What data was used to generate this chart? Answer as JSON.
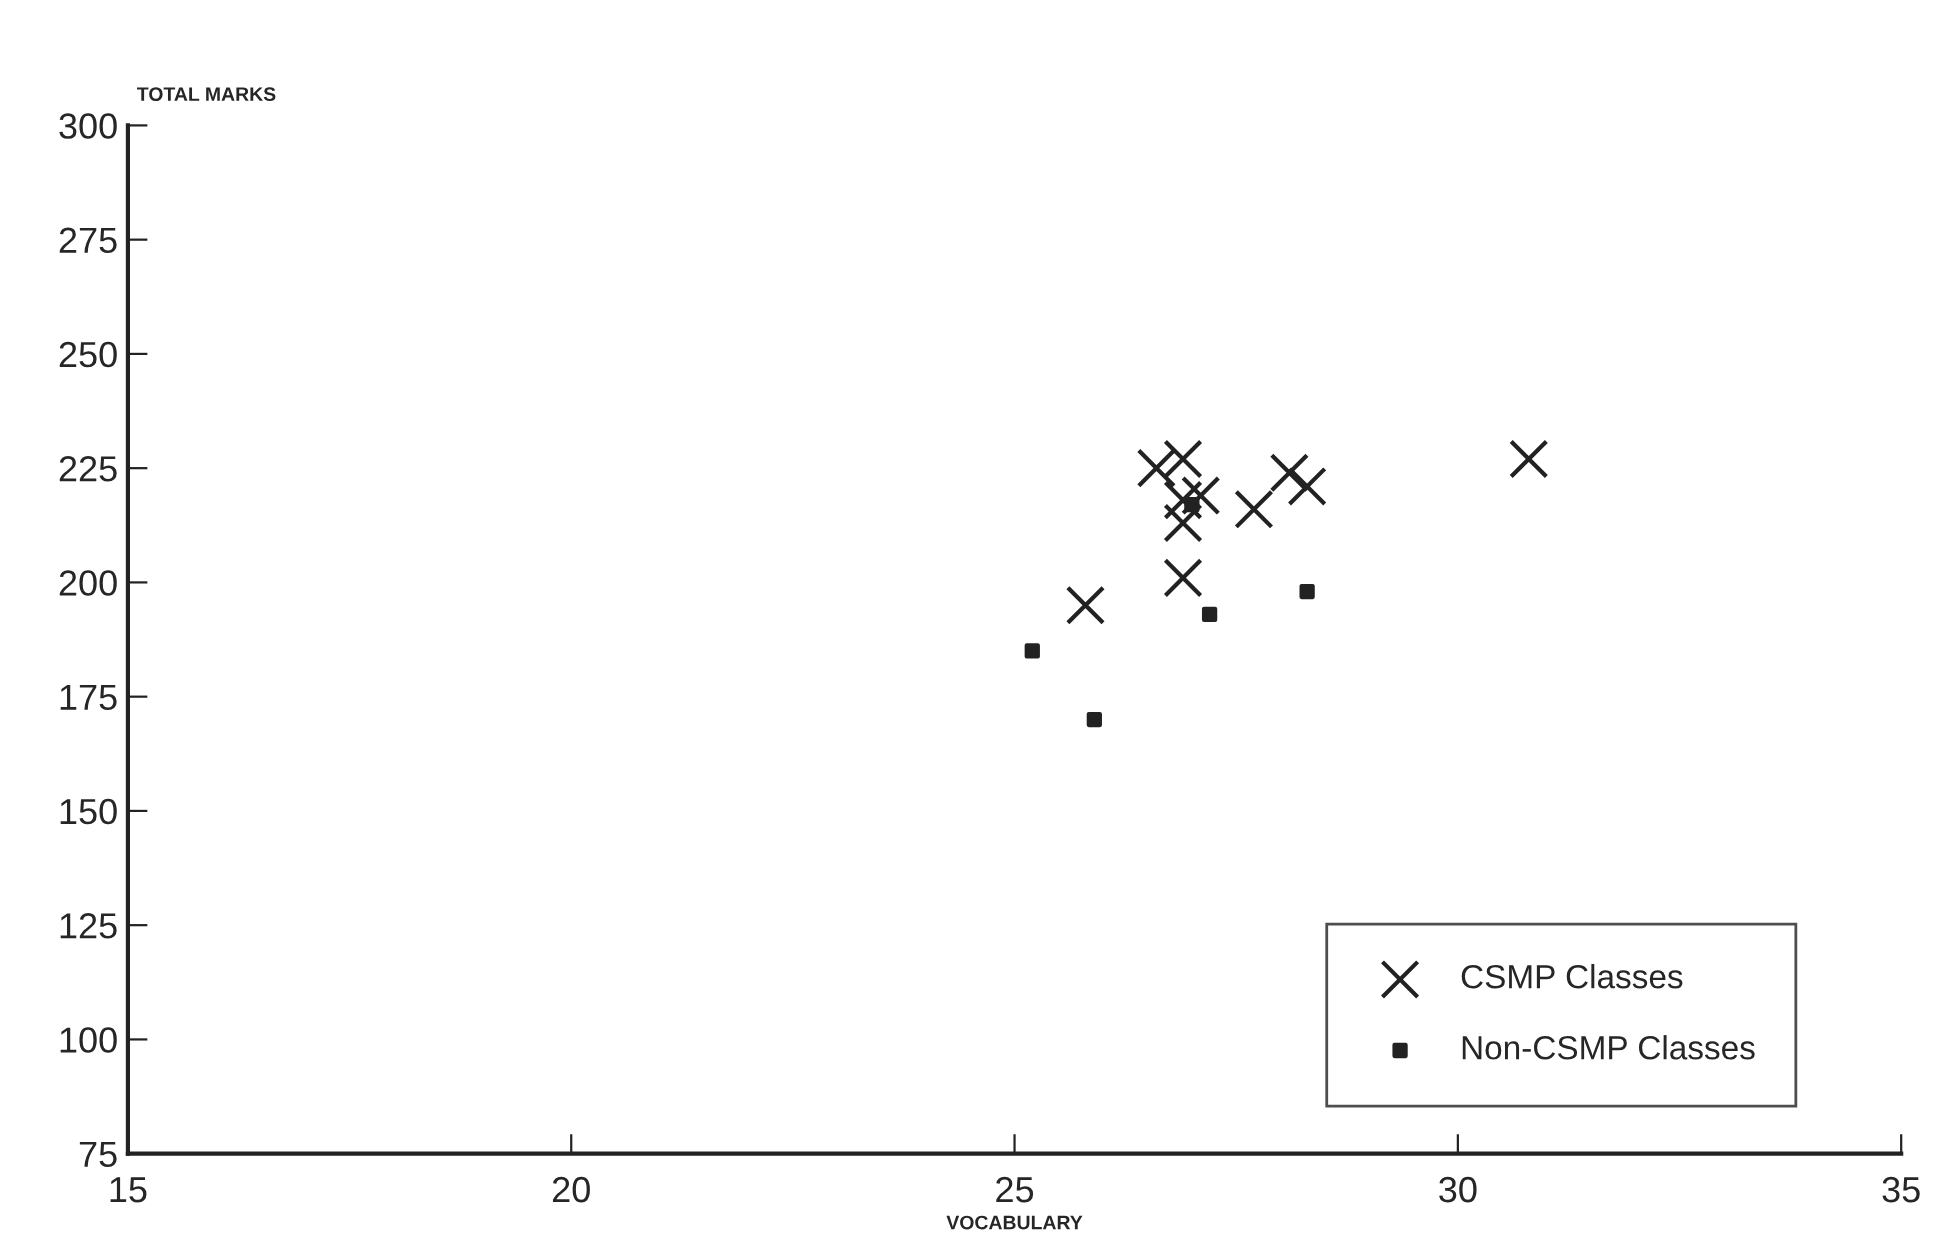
{
  "chart_data": {
    "type": "scatter",
    "xlabel": "VOCABULARY",
    "ylabel": "TOTAL MARKS",
    "xlim": [
      15,
      35
    ],
    "xticks": [
      15,
      20,
      25,
      30,
      35
    ],
    "ylim": [
      75,
      300
    ],
    "yticks": [
      75,
      100,
      125,
      150,
      175,
      200,
      225,
      250,
      275,
      300
    ],
    "grid": false,
    "legend": "bottom right",
    "series": [
      {
        "name": "CSMP Classes",
        "color": "#222222",
        "marker": "cross",
        "x": [
          26.6,
          26.9,
          25.8,
          26.9,
          26.9,
          26.9,
          27.1,
          27.7,
          28.1,
          28.3,
          30.8
        ],
        "values": [
          225,
          227,
          195,
          201,
          213,
          218,
          219,
          216,
          224,
          221,
          227
        ]
      },
      {
        "name": "Non-CSMP Classes",
        "color": "#222222",
        "marker": "square",
        "x": [
          25.2,
          25.9,
          27.2,
          28.3,
          27.0
        ],
        "values": [
          185,
          170,
          193,
          198,
          217
        ]
      }
    ]
  }
}
